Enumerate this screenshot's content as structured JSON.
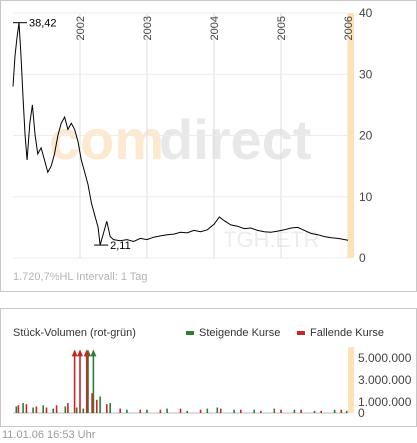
{
  "chart_data": [
    {
      "type": "line",
      "title": "",
      "xlabel": "",
      "ylabel": "",
      "x_tick_labels": [
        "2002",
        "2003",
        "2004",
        "2005",
        "2006"
      ],
      "y_ticks": [
        0,
        10,
        20,
        30,
        40
      ],
      "ylim": [
        0,
        40
      ],
      "xlim": [
        2001.0,
        2006.0
      ],
      "grid": true,
      "annotations": [
        {
          "text": "38,42",
          "x": 2001.09,
          "y": 38.42,
          "type": "high"
        },
        {
          "text": "2,11",
          "x": 2002.3,
          "y": 2.11,
          "type": "low"
        }
      ],
      "series": [
        {
          "x": [
            2001.0,
            2001.03,
            2001.06,
            2001.09,
            2001.12,
            2001.15,
            2001.18,
            2001.21,
            2001.25,
            2001.29,
            2001.33,
            2001.37,
            2001.42,
            2001.47,
            2001.52,
            2001.57,
            2001.62,
            2001.67,
            2001.72,
            2001.77,
            2001.82,
            2001.87,
            2001.92,
            2001.97,
            2002.02,
            2002.07,
            2002.12,
            2002.17,
            2002.22,
            2002.27,
            2002.3,
            2002.35,
            2002.4,
            2002.45,
            2002.5,
            2002.6,
            2002.7,
            2002.8,
            2002.9,
            2003.0,
            2003.1,
            2003.2,
            2003.3,
            2003.4,
            2003.5,
            2003.6,
            2003.7,
            2003.8,
            2003.9,
            2004.0,
            2004.08,
            2004.15,
            2004.25,
            2004.35,
            2004.45,
            2004.55,
            2004.65,
            2004.75,
            2004.85,
            2004.95,
            2005.05,
            2005.15,
            2005.25,
            2005.35,
            2005.45,
            2005.55,
            2005.65,
            2005.75,
            2005.85,
            2005.95,
            2006.0
          ],
          "y": [
            28,
            33,
            36,
            38.42,
            33,
            26,
            20,
            16,
            22,
            25,
            20,
            17,
            18,
            16,
            14,
            15,
            17,
            20,
            22,
            23,
            21,
            22,
            21,
            19,
            16,
            14,
            12,
            9,
            7,
            5,
            2.11,
            4,
            6,
            3.5,
            3,
            2.8,
            3,
            2.7,
            3.2,
            3,
            3.4,
            3.6,
            3.8,
            3.9,
            4.2,
            4.1,
            4.5,
            4.3,
            4.6,
            5.5,
            6.7,
            6.1,
            5.4,
            5.2,
            4.8,
            4.9,
            4.5,
            4.3,
            4.2,
            4.4,
            4.6,
            4.9,
            5,
            4.5,
            4,
            3.8,
            3.5,
            3.3,
            3.2,
            3.0,
            2.9
          ]
        }
      ]
    },
    {
      "type": "bar",
      "title": "Stück-Volumen (rot-grün)",
      "xlabel": "",
      "ylabel": "",
      "y_tick_labels": [
        "5.000.000",
        "3.000.000",
        "1.000.000",
        "0"
      ],
      "y_ticks": [
        5000000,
        3000000,
        1000000,
        0
      ],
      "ylim": [
        0,
        6000000
      ],
      "legend": {
        "position": "top-right"
      },
      "series": [
        {
          "name": "Steigende Kurse",
          "color": "#2e7d32",
          "x": [
            2001.05,
            2001.15,
            2001.3,
            2001.45,
            2001.6,
            2001.78,
            2001.95,
            2002.05,
            2002.12,
            2002.2,
            2002.3,
            2002.45,
            2002.7,
            2003.0,
            2003.3,
            2003.6,
            2003.9,
            2004.05,
            2004.3,
            2004.6,
            2004.9,
            2005.2,
            2005.5,
            2005.8,
            2005.98
          ],
          "values": [
            600000,
            900000,
            500000,
            700000,
            400000,
            600000,
            500000,
            400000,
            5600000,
            5600000,
            1500000,
            900000,
            300000,
            300000,
            400000,
            200000,
            400000,
            500000,
            300000,
            300000,
            400000,
            300000,
            200000,
            300000,
            200000
          ]
        },
        {
          "name": "Fallende Kurse",
          "color": "#c62828",
          "x": [
            2001.08,
            2001.2,
            2001.35,
            2001.5,
            2001.65,
            2001.82,
            2001.92,
            2002.0,
            2002.1,
            2002.18,
            2002.25,
            2002.4,
            2002.6,
            2002.9,
            2003.2,
            2003.5,
            2003.8,
            2004.1,
            2004.4,
            2004.7,
            2005.0,
            2005.3,
            2005.6,
            2005.9
          ],
          "values": [
            700000,
            800000,
            600000,
            500000,
            700000,
            900000,
            5600000,
            5600000,
            5600000,
            1800000,
            1200000,
            800000,
            400000,
            300000,
            300000,
            400000,
            300000,
            400000,
            300000,
            200000,
            300000,
            300000,
            200000,
            300000
          ]
        }
      ]
    }
  ],
  "page": {
    "watermark_primary": "com",
    "watermark_secondary": "direct",
    "ticker_watermark": "TGH.ETR",
    "intervall_text": "1.720,7%HL Intervall: 1 Tag",
    "timestamp": "11.01.06   16:53 Uhr",
    "colors": {
      "price_line": "#000000",
      "axis_highlight": "#fbe3b5",
      "grid": "#d9d9d9",
      "watermark_primary": "#fde9cf",
      "watermark_secondary": "#e6e6e6",
      "rise": "#2e7d32",
      "fall": "#c62828"
    }
  }
}
